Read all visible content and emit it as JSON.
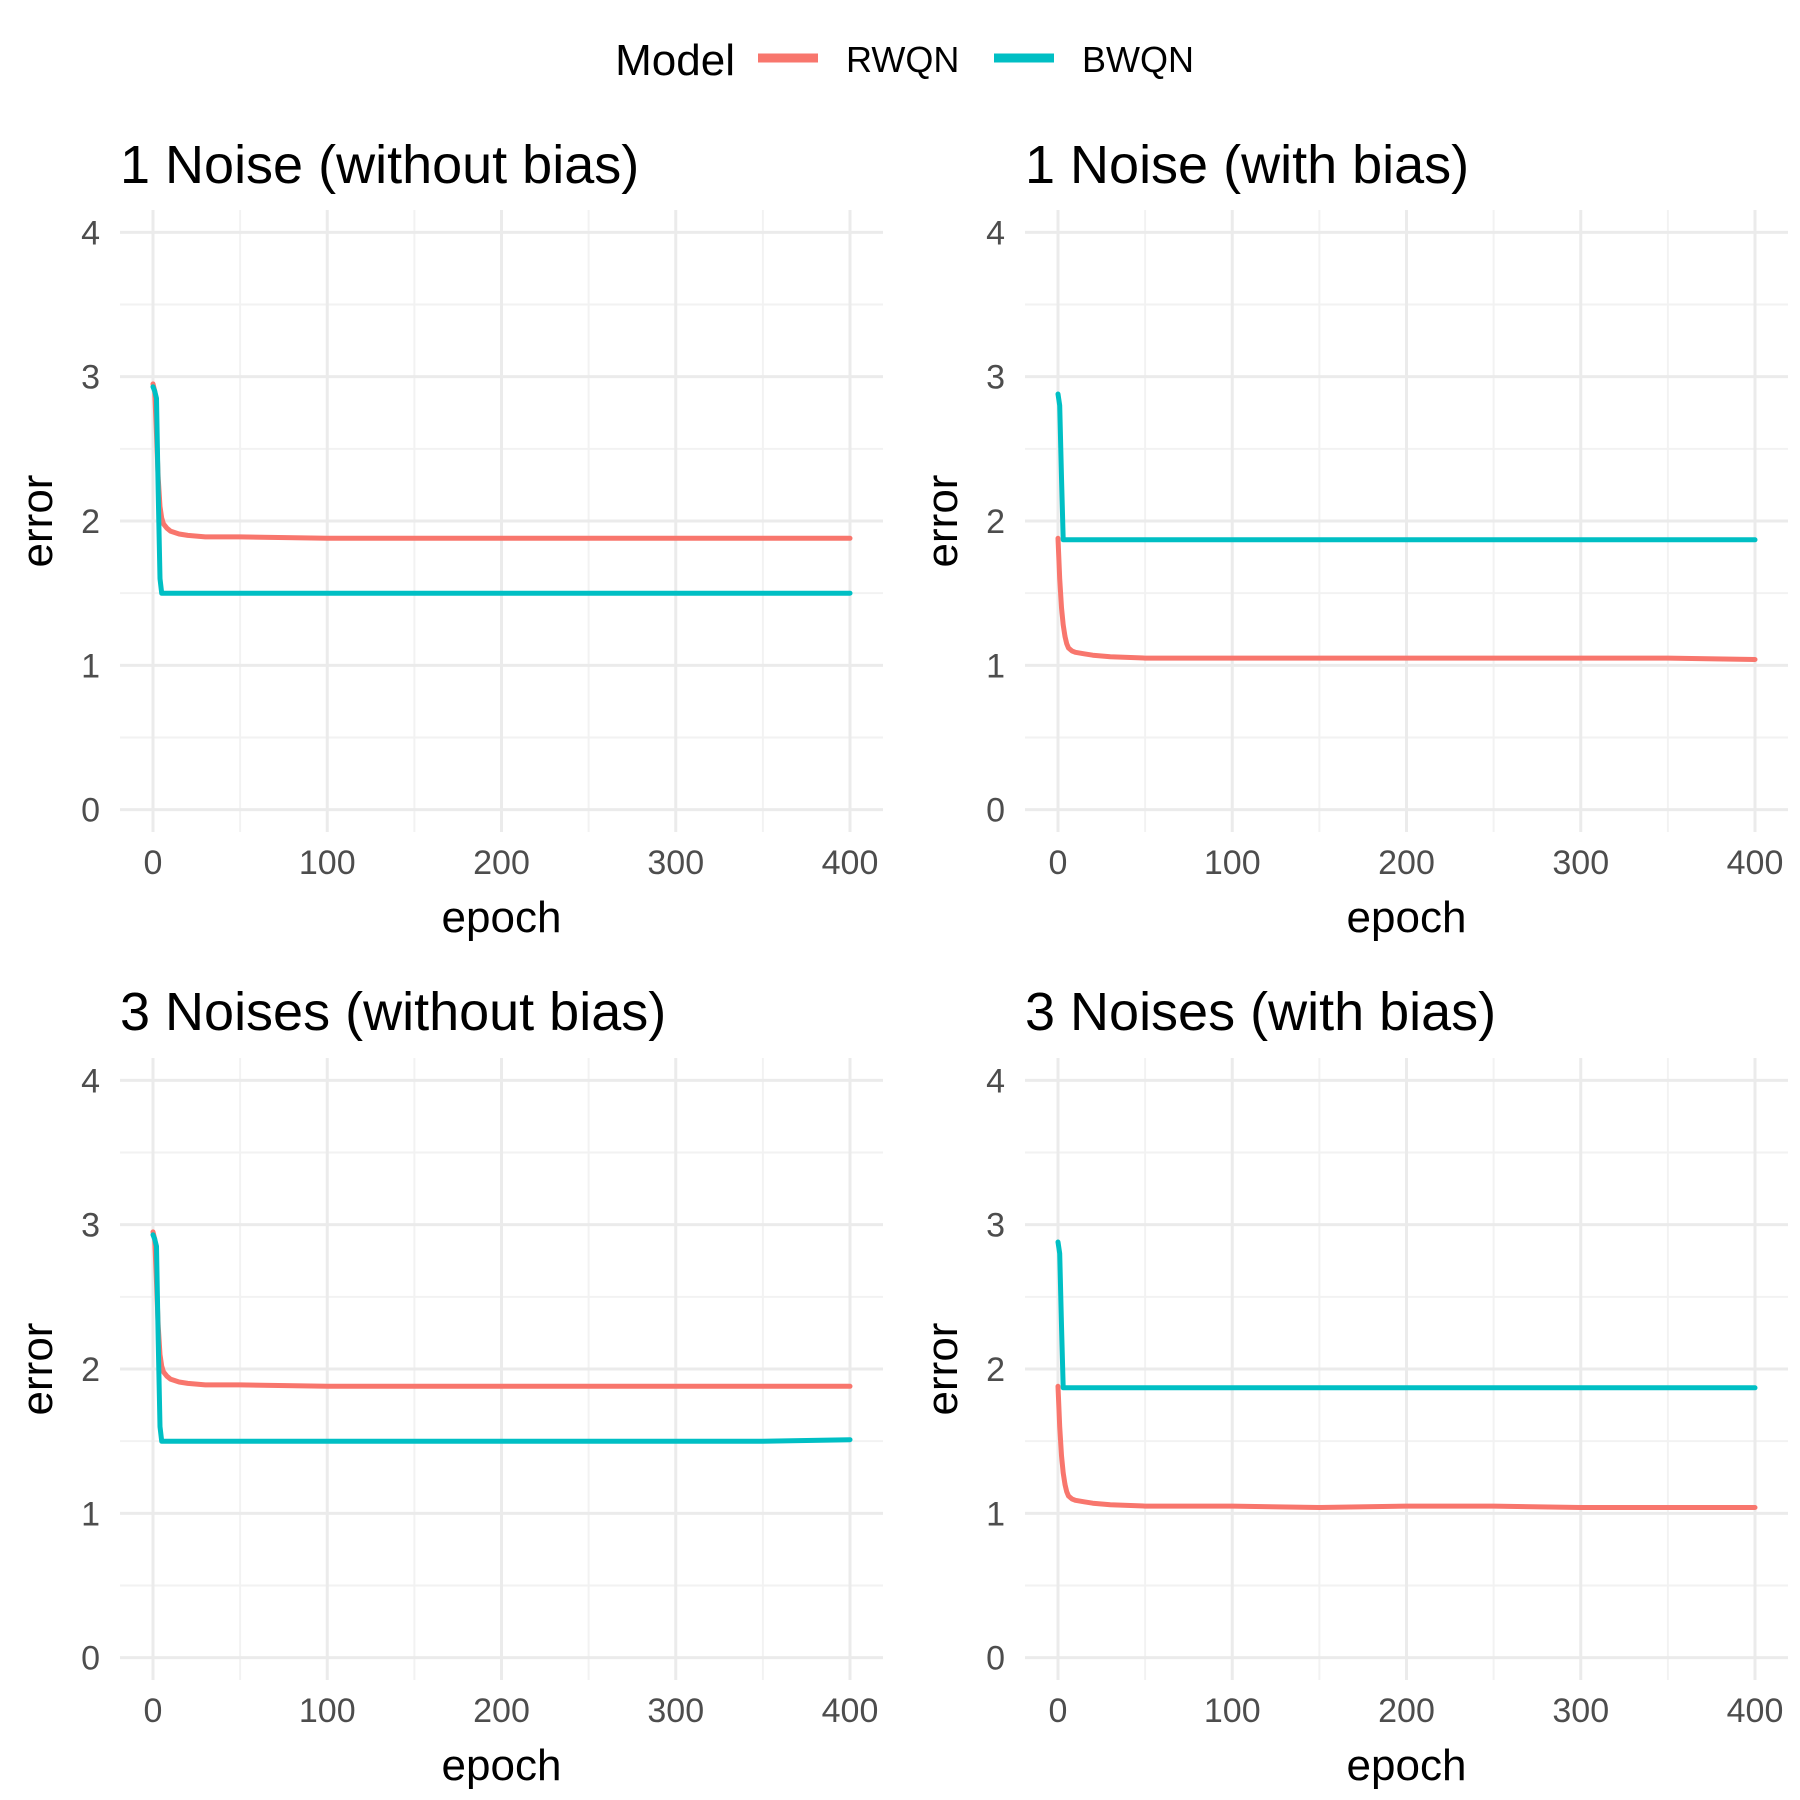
{
  "legend": {
    "title": "Model",
    "entries": [
      {
        "label": "RWQN",
        "color": "#F8766D"
      },
      {
        "label": "BWQN",
        "color": "#00BFC4"
      }
    ]
  },
  "chart_data": [
    {
      "type": "line",
      "title": "1 Noise (without bias)",
      "xlabel": "epoch",
      "ylabel": "error",
      "xlim": [
        0,
        400
      ],
      "ylim": [
        0,
        4
      ],
      "xticks": [
        "0",
        "100",
        "200",
        "300",
        "400"
      ],
      "yticks": [
        "0",
        "1",
        "2",
        "3",
        "4"
      ],
      "grid": true,
      "series": [
        {
          "name": "RWQN",
          "color": "#F8766D",
          "x": [
            0,
            1,
            2,
            3,
            4,
            5,
            6,
            8,
            10,
            15,
            20,
            30,
            50,
            100,
            150,
            200,
            250,
            300,
            350,
            400
          ],
          "y": [
            2.95,
            2.9,
            2.6,
            2.3,
            2.1,
            2.02,
            1.98,
            1.95,
            1.93,
            1.91,
            1.9,
            1.89,
            1.89,
            1.88,
            1.88,
            1.88,
            1.88,
            1.88,
            1.88,
            1.88
          ]
        },
        {
          "name": "BWQN",
          "color": "#00BFC4",
          "x": [
            0,
            1,
            2,
            3,
            4,
            5,
            6,
            10,
            50,
            100,
            150,
            200,
            250,
            300,
            350,
            400
          ],
          "y": [
            2.93,
            2.9,
            2.85,
            2.2,
            1.6,
            1.5,
            1.5,
            1.5,
            1.5,
            1.5,
            1.5,
            1.5,
            1.5,
            1.5,
            1.5,
            1.5
          ]
        }
      ]
    },
    {
      "type": "line",
      "title": "1 Noise (with bias)",
      "xlabel": "epoch",
      "ylabel": "error",
      "xlim": [
        0,
        400
      ],
      "ylim": [
        0,
        4
      ],
      "xticks": [
        "0",
        "100",
        "200",
        "300",
        "400"
      ],
      "yticks": [
        "0",
        "1",
        "2",
        "3",
        "4"
      ],
      "grid": true,
      "series": [
        {
          "name": "RWQN",
          "color": "#F8766D",
          "x": [
            0,
            1,
            2,
            3,
            4,
            5,
            6,
            8,
            10,
            15,
            20,
            30,
            50,
            100,
            150,
            200,
            250,
            300,
            350,
            400
          ],
          "y": [
            1.88,
            1.6,
            1.4,
            1.28,
            1.2,
            1.15,
            1.12,
            1.1,
            1.09,
            1.08,
            1.07,
            1.06,
            1.05,
            1.05,
            1.05,
            1.05,
            1.05,
            1.05,
            1.05,
            1.04
          ]
        },
        {
          "name": "BWQN",
          "color": "#00BFC4",
          "x": [
            0,
            1,
            2,
            3,
            4,
            5,
            10,
            50,
            100,
            150,
            200,
            250,
            300,
            350,
            400
          ],
          "y": [
            2.88,
            2.8,
            2.3,
            1.87,
            1.87,
            1.87,
            1.87,
            1.87,
            1.87,
            1.87,
            1.87,
            1.87,
            1.87,
            1.87,
            1.87
          ]
        }
      ]
    },
    {
      "type": "line",
      "title": "3 Noises (without bias)",
      "xlabel": "epoch",
      "ylabel": "error",
      "xlim": [
        0,
        400
      ],
      "ylim": [
        0,
        4
      ],
      "xticks": [
        "0",
        "100",
        "200",
        "300",
        "400"
      ],
      "yticks": [
        "0",
        "1",
        "2",
        "3",
        "4"
      ],
      "grid": true,
      "series": [
        {
          "name": "RWQN",
          "color": "#F8766D",
          "x": [
            0,
            1,
            2,
            3,
            4,
            5,
            6,
            8,
            10,
            15,
            20,
            30,
            50,
            100,
            150,
            200,
            250,
            300,
            350,
            400
          ],
          "y": [
            2.95,
            2.9,
            2.6,
            2.3,
            2.1,
            2.02,
            1.98,
            1.95,
            1.93,
            1.91,
            1.9,
            1.89,
            1.89,
            1.88,
            1.88,
            1.88,
            1.88,
            1.88,
            1.88,
            1.88
          ]
        },
        {
          "name": "BWQN",
          "color": "#00BFC4",
          "x": [
            0,
            1,
            2,
            3,
            4,
            5,
            6,
            10,
            50,
            100,
            150,
            200,
            250,
            300,
            350,
            400
          ],
          "y": [
            2.93,
            2.9,
            2.85,
            2.2,
            1.6,
            1.5,
            1.5,
            1.5,
            1.5,
            1.5,
            1.5,
            1.5,
            1.5,
            1.5,
            1.5,
            1.51
          ]
        }
      ]
    },
    {
      "type": "line",
      "title": "3 Noises (with bias)",
      "xlabel": "epoch",
      "ylabel": "error",
      "xlim": [
        0,
        400
      ],
      "ylim": [
        0,
        4
      ],
      "xticks": [
        "0",
        "100",
        "200",
        "300",
        "400"
      ],
      "yticks": [
        "0",
        "1",
        "2",
        "3",
        "4"
      ],
      "grid": true,
      "series": [
        {
          "name": "RWQN",
          "color": "#F8766D",
          "x": [
            0,
            1,
            2,
            3,
            4,
            5,
            6,
            8,
            10,
            15,
            20,
            30,
            50,
            100,
            150,
            200,
            250,
            300,
            350,
            400
          ],
          "y": [
            1.88,
            1.6,
            1.4,
            1.28,
            1.2,
            1.15,
            1.12,
            1.1,
            1.09,
            1.08,
            1.07,
            1.06,
            1.05,
            1.05,
            1.04,
            1.05,
            1.05,
            1.04,
            1.04,
            1.04
          ]
        },
        {
          "name": "BWQN",
          "color": "#00BFC4",
          "x": [
            0,
            1,
            2,
            3,
            4,
            5,
            10,
            50,
            100,
            150,
            200,
            250,
            300,
            350,
            400
          ],
          "y": [
            2.88,
            2.8,
            2.3,
            1.87,
            1.87,
            1.87,
            1.87,
            1.87,
            1.87,
            1.87,
            1.87,
            1.87,
            1.87,
            1.87,
            1.87
          ]
        }
      ]
    }
  ]
}
